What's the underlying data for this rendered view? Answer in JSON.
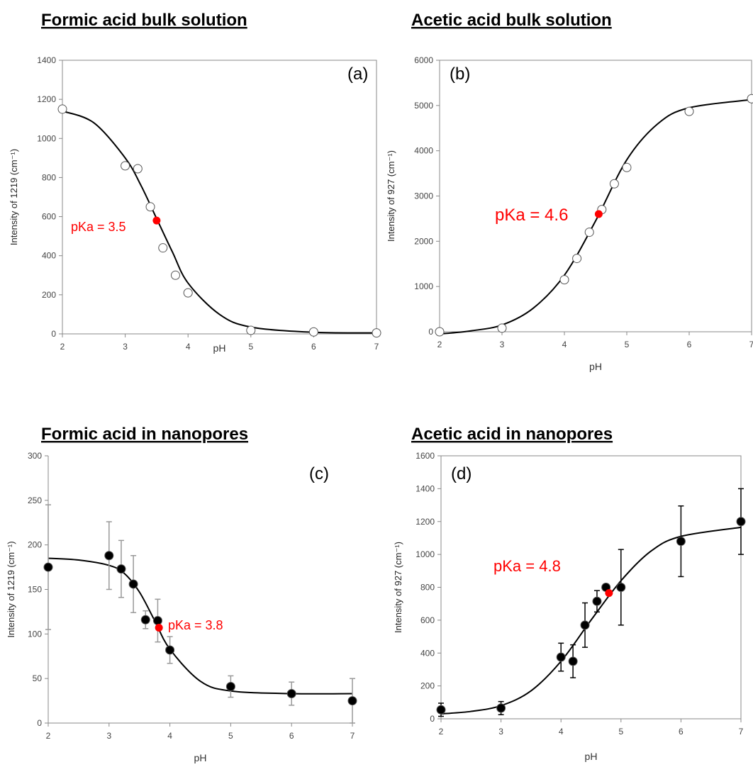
{
  "chart_data": [
    {
      "type": "scatter",
      "title": "Formic acid bulk solution",
      "panel_label": "(a)",
      "annotation": "pKa = 3.5",
      "x_label": "pH",
      "y_label": "Intensity of 1219 (cm⁻¹)",
      "x": [
        2,
        3,
        3.2,
        3.4,
        3.6,
        3.8,
        4,
        5,
        6,
        7
      ],
      "values": [
        1150,
        860,
        845,
        650,
        440,
        300,
        210,
        18,
        10,
        5
      ],
      "marker_fill": "#ffffff",
      "box": true,
      "pka_point": {
        "x": 3.5,
        "value": 580,
        "color": "#ff0000"
      },
      "fit": {
        "x": [
          2,
          2.5,
          3,
          3.25,
          3.5,
          3.75,
          4,
          4.5,
          5,
          6,
          7
        ],
        "values": [
          1140,
          1080,
          900,
          760,
          590,
          420,
          260,
          100,
          35,
          8,
          5
        ]
      },
      "xlim": [
        2,
        7
      ],
      "xticks": [
        2,
        3,
        4,
        5,
        6,
        7
      ],
      "ylim": [
        0,
        1400
      ],
      "yticks": [
        0,
        200,
        400,
        600,
        800,
        1000,
        1200,
        1400
      ]
    },
    {
      "type": "scatter",
      "title": "Acetic acid bulk solution",
      "panel_label": "(b)",
      "annotation": "pKa = 4.6",
      "x_label": "pH",
      "y_label": "Intensity of 927 (cm⁻¹)",
      "x": [
        2,
        3,
        4,
        4.2,
        4.4,
        4.6,
        4.8,
        5,
        6,
        7
      ],
      "values": [
        0,
        80,
        1150,
        1620,
        2200,
        2700,
        3270,
        3630,
        4870,
        5150
      ],
      "marker_fill": "#ffffff",
      "box": true,
      "pka_point": {
        "x": 4.55,
        "value": 2600,
        "color": "#ff0000"
      },
      "fit": {
        "x": [
          2,
          2.5,
          3,
          3.5,
          4,
          4.5,
          5,
          5.5,
          6,
          7
        ],
        "values": [
          -50,
          20,
          150,
          520,
          1250,
          2450,
          3800,
          4600,
          4950,
          5130
        ]
      },
      "xlim": [
        2,
        7
      ],
      "xticks": [
        2,
        3,
        4,
        5,
        6,
        7
      ],
      "ylim": [
        0,
        6000
      ],
      "yticks": [
        0,
        1000,
        2000,
        3000,
        4000,
        5000,
        6000
      ]
    },
    {
      "type": "scatter",
      "title": "Formic acid in nanopores",
      "panel_label": "(c)",
      "annotation": "pKa = 3.8",
      "x_label": "pH",
      "y_label": "Intensity of 1219 (cm⁻¹)",
      "x": [
        2,
        3,
        3.2,
        3.4,
        3.6,
        3.8,
        4,
        5,
        6,
        7
      ],
      "values": [
        175,
        188,
        173,
        156,
        116,
        115,
        82,
        41,
        33,
        25
      ],
      "errors": [
        70,
        38,
        32,
        32,
        10,
        24,
        15,
        12,
        13,
        25
      ],
      "error_color": "#999999",
      "marker_fill": "#000000",
      "box": false,
      "pka_point": {
        "x": 3.82,
        "value": 107,
        "color": "#ff0000"
      },
      "fit": {
        "x": [
          2,
          2.5,
          3,
          3.25,
          3.5,
          3.75,
          4,
          4.5,
          5,
          6,
          7
        ],
        "values": [
          185,
          183,
          177,
          168,
          147,
          115,
          83,
          47,
          36,
          33,
          33
        ]
      },
      "xlim": [
        2,
        7
      ],
      "xticks": [
        2,
        3,
        4,
        5,
        6,
        7
      ],
      "ylim": [
        0,
        300
      ],
      "yticks": [
        0,
        50,
        100,
        150,
        200,
        250,
        300
      ]
    },
    {
      "type": "scatter",
      "title": "Acetic acid in nanopores",
      "panel_label": "(d)",
      "annotation": "pKa = 4.8",
      "x_label": "pH",
      "y_label": "Intensity of 927 (cm⁻¹)",
      "x": [
        2,
        3,
        4,
        4.2,
        4.4,
        4.6,
        4.75,
        5,
        6,
        7
      ],
      "values": [
        55,
        65,
        375,
        350,
        570,
        715,
        800,
        800,
        1080,
        1200
      ],
      "errors": [
        40,
        40,
        85,
        100,
        135,
        65,
        20,
        230,
        215,
        200
      ],
      "error_color": "#000000",
      "marker_fill": "#000000",
      "box": true,
      "pka_point": {
        "x": 4.8,
        "value": 765,
        "color": "#ff0000"
      },
      "fit": {
        "x": [
          2,
          2.5,
          3,
          3.5,
          4,
          4.5,
          5,
          5.5,
          6,
          7
        ],
        "values": [
          30,
          45,
          80,
          170,
          350,
          600,
          840,
          1020,
          1110,
          1165
        ]
      },
      "xlim": [
        2,
        7
      ],
      "xticks": [
        2,
        3,
        4,
        5,
        6,
        7
      ],
      "ylim": [
        0,
        1600
      ],
      "yticks": [
        0,
        200,
        400,
        600,
        800,
        1000,
        1200,
        1400,
        1600
      ]
    }
  ]
}
